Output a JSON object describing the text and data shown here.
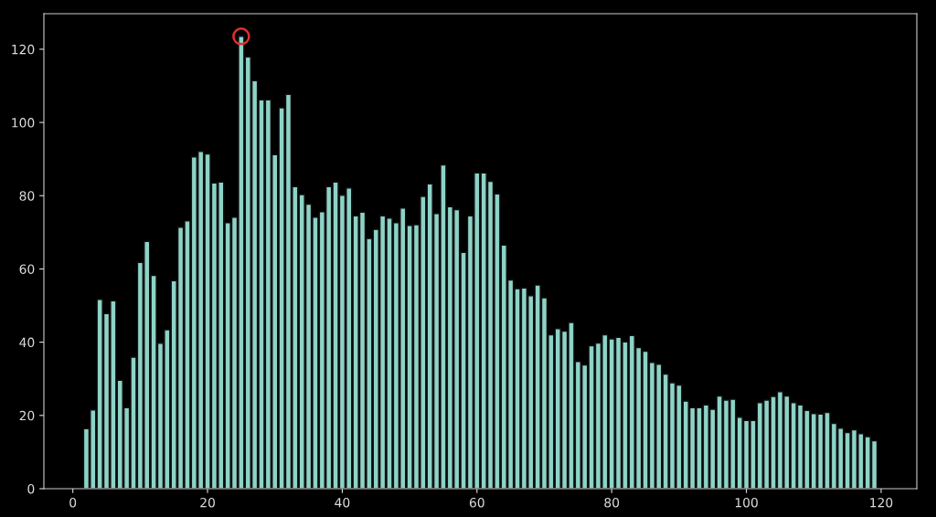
{
  "chart_data": {
    "type": "bar",
    "x": [
      2,
      3,
      4,
      5,
      6,
      7,
      8,
      9,
      10,
      11,
      12,
      13,
      14,
      15,
      16,
      17,
      18,
      19,
      20,
      21,
      22,
      23,
      24,
      25,
      26,
      27,
      28,
      29,
      30,
      31,
      32,
      33,
      34,
      35,
      36,
      37,
      38,
      39,
      40,
      41,
      42,
      43,
      44,
      45,
      46,
      47,
      48,
      49,
      50,
      51,
      52,
      53,
      54,
      55,
      56,
      57,
      58,
      59,
      60,
      61,
      62,
      63,
      64,
      65,
      66,
      67,
      68,
      69,
      70,
      71,
      72,
      73,
      74,
      75,
      76,
      77,
      78,
      79,
      80,
      81,
      82,
      83,
      84,
      85,
      86,
      87,
      88,
      89,
      90,
      91,
      92,
      93,
      94,
      95,
      96,
      97,
      98,
      99,
      100,
      101,
      102,
      103,
      104,
      105,
      106,
      107,
      108,
      109,
      110,
      111,
      112,
      113,
      114,
      115,
      116,
      117,
      118,
      119
    ],
    "series": [
      {
        "color": "#8dd3c7",
        "values": [
          16.4,
          21.5,
          51.7,
          47.8,
          51.3,
          29.6,
          22.1,
          35.9,
          61.8,
          67.5,
          58.2,
          39.7,
          43.4,
          56.8,
          71.4,
          73.1,
          90.6,
          92.1,
          91.4,
          83.5,
          83.7,
          72.6,
          74.1,
          123.5,
          117.9,
          111.4,
          106.2,
          106.2,
          91.2,
          104.0,
          107.7,
          82.5,
          80.3,
          77.7,
          74.1,
          75.6,
          82.5,
          83.7,
          80.1,
          82.1,
          74.5,
          75.5,
          68.3,
          70.8,
          74.5,
          73.9,
          72.6,
          76.6,
          71.9,
          72.1,
          79.8,
          83.2,
          75.1,
          88.4,
          77.0,
          76.2,
          64.5,
          74.5,
          86.2,
          86.2,
          83.9,
          80.5,
          66.5,
          57.0,
          54.6,
          54.8,
          52.7,
          55.6,
          52.1,
          42.0,
          43.7,
          43.0,
          45.4,
          34.7,
          33.8,
          39.0,
          39.8,
          42.0,
          40.9,
          41.3,
          40.1,
          41.8,
          38.5,
          37.5,
          34.5,
          34.0,
          31.3,
          28.9,
          28.3,
          23.9,
          22.1,
          22.1,
          22.9,
          21.7,
          25.3,
          24.2,
          24.4,
          19.5,
          18.6,
          18.6,
          23.5,
          24.2,
          25.2,
          26.5,
          25.3,
          23.5,
          22.9,
          21.4,
          20.5,
          20.4,
          20.8,
          17.8,
          16.5,
          15.3,
          16.1,
          15.0,
          14.2,
          13.1
        ]
      },
      {
        "type": "scatter",
        "x": [
          25
        ],
        "values": [
          123.5
        ],
        "color": "#e0302c",
        "marker": "circle"
      }
    ],
    "xlim": [
      -4.3,
      125.3
    ],
    "ylim": [
      0,
      129.7
    ],
    "xticks": [
      0,
      20,
      40,
      60,
      80,
      100,
      120
    ],
    "yticks": [
      0,
      20,
      40,
      60,
      80,
      100,
      120
    ],
    "grid": false
  }
}
